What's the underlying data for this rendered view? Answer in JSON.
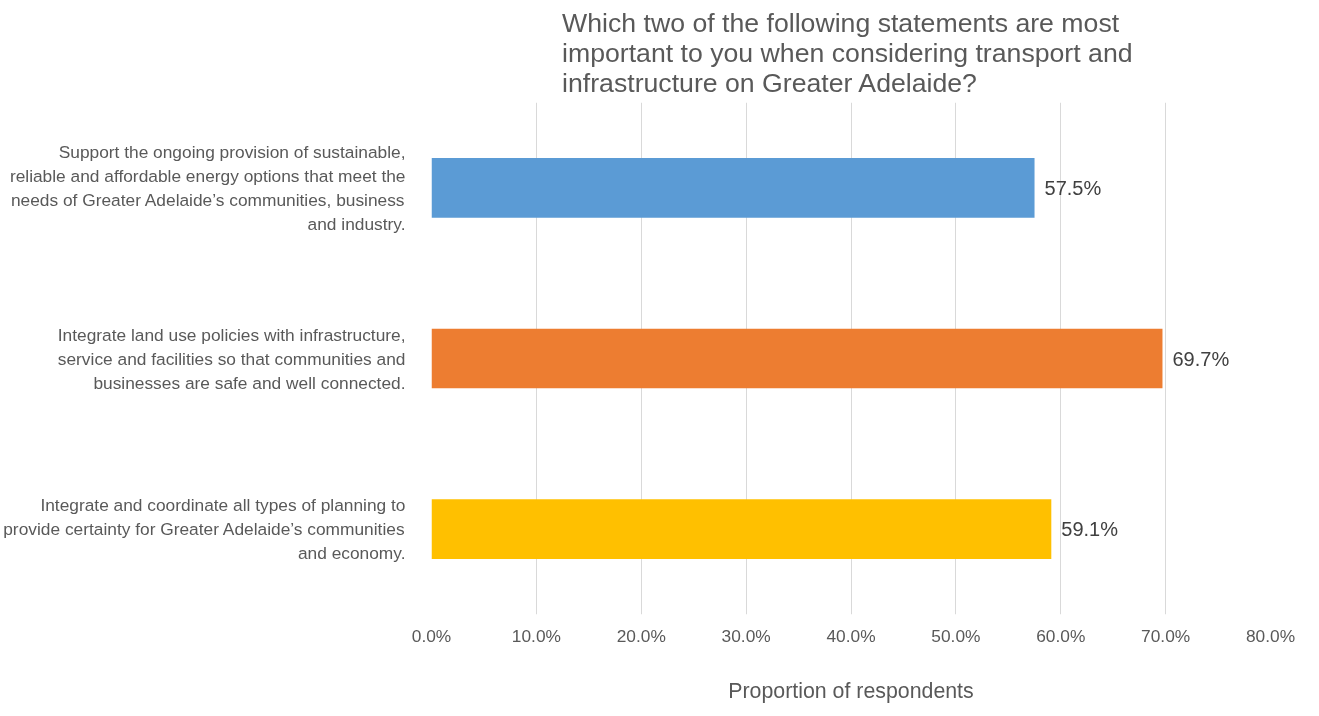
{
  "chart_data": {
    "type": "bar",
    "orientation": "horizontal",
    "title": "Which two of the following statements are most important to you  when considering transport and infrastructure on Greater Adelaide?",
    "xlabel": "Proportion of respondents",
    "categories": [
      "Support the ongoing provision of sustainable, reliable and affordable energy options that meet the needs of Greater Adelaide’s communities, business and industry.",
      "Integrate land use policies with infrastructure, service and facilities so that communities and businesses are safe and well connected.",
      "Integrate and coordinate all types of planning to provide certainty for Greater Adelaide’s communities and economy."
    ],
    "values": [
      57.5,
      69.7,
      59.1
    ],
    "colors": [
      "#5b9bd5",
      "#ed7d31",
      "#ffc000"
    ],
    "value_labels": [
      "57.5%",
      "69.7%",
      "59.1%"
    ],
    "xlim": [
      0,
      80
    ],
    "xticks": [
      {
        "value": 0,
        "label": "0.0%"
      },
      {
        "value": 10,
        "label": "10.0%"
      },
      {
        "value": 20,
        "label": "20.0%"
      },
      {
        "value": 30,
        "label": "30.0%"
      },
      {
        "value": 40,
        "label": "40.0%"
      },
      {
        "value": 50,
        "label": "50.0%"
      },
      {
        "value": 60,
        "label": "60.0%"
      },
      {
        "value": 70,
        "label": "70.0%"
      },
      {
        "value": 80,
        "label": "80.0%"
      }
    ],
    "grid": "x"
  }
}
